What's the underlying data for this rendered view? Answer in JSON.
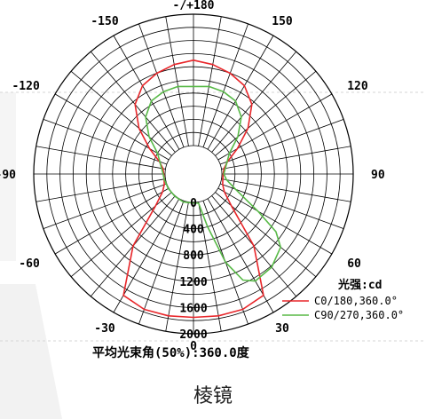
{
  "chart_data": {
    "type": "polar-line",
    "title": "",
    "unit_label": "光强:cd",
    "summary": "平均光束角(50%):360.0度",
    "radial_ticks": [
      "0",
      "400",
      "800",
      "1200",
      "1600",
      "2000"
    ],
    "radial_max": 2000,
    "angle_labels": [
      {
        "angle": 180,
        "text": "-/+180"
      },
      {
        "angle": -150,
        "text": "-150"
      },
      {
        "angle": 150,
        "text": "150"
      },
      {
        "angle": -120,
        "text": "-120"
      },
      {
        "angle": 120,
        "text": "120"
      },
      {
        "angle": -90,
        "text": "-90"
      },
      {
        "angle": 90,
        "text": "90"
      },
      {
        "angle": -60,
        "text": "-60"
      },
      {
        "angle": 60,
        "text": "60"
      },
      {
        "angle": -30,
        "text": "-30"
      },
      {
        "angle": 30,
        "text": "30"
      },
      {
        "angle": 0,
        "text": "0"
      }
    ],
    "series": [
      {
        "name": "C0/180,360.0°",
        "color": "#e8262a",
        "points": [
          [
            0,
            1750
          ],
          [
            10,
            1760
          ],
          [
            20,
            1760
          ],
          [
            30,
            1700
          ],
          [
            40,
            1000
          ],
          [
            50,
            320
          ],
          [
            60,
            110
          ],
          [
            70,
            40
          ],
          [
            80,
            20
          ],
          [
            90,
            20
          ],
          [
            100,
            40
          ],
          [
            110,
            120
          ],
          [
            120,
            340
          ],
          [
            130,
            650
          ],
          [
            140,
            950
          ],
          [
            150,
            1120
          ],
          [
            160,
            1200
          ],
          [
            170,
            1260
          ],
          [
            180,
            1300
          ],
          [
            190,
            1260
          ],
          [
            200,
            1200
          ],
          [
            210,
            1120
          ],
          [
            220,
            950
          ],
          [
            230,
            650
          ],
          [
            240,
            340
          ],
          [
            250,
            120
          ],
          [
            260,
            40
          ],
          [
            270,
            20
          ],
          [
            280,
            20
          ],
          [
            290,
            40
          ],
          [
            300,
            110
          ],
          [
            310,
            320
          ],
          [
            320,
            1000
          ],
          [
            330,
            1700
          ],
          [
            340,
            1760
          ],
          [
            350,
            1760
          ]
        ]
      },
      {
        "name": "C90/270,360.0°",
        "color": "#58b947",
        "points": [
          [
            0,
            10
          ],
          [
            10,
            20
          ],
          [
            15,
            400
          ],
          [
            20,
            1000
          ],
          [
            25,
            1350
          ],
          [
            30,
            1450
          ],
          [
            40,
            1420
          ],
          [
            50,
            1300
          ],
          [
            55,
            1100
          ],
          [
            60,
            700
          ],
          [
            70,
            250
          ],
          [
            80,
            80
          ],
          [
            90,
            30
          ],
          [
            100,
            60
          ],
          [
            120,
            200
          ],
          [
            130,
            450
          ],
          [
            140,
            700
          ],
          [
            150,
            850
          ],
          [
            160,
            900
          ],
          [
            170,
            920
          ],
          [
            180,
            900
          ],
          [
            190,
            920
          ],
          [
            200,
            900
          ],
          [
            210,
            850
          ],
          [
            220,
            700
          ],
          [
            230,
            450
          ],
          [
            240,
            200
          ],
          [
            260,
            60
          ],
          [
            270,
            30
          ],
          [
            280,
            20
          ],
          [
            300,
            10
          ],
          [
            320,
            10
          ],
          [
            340,
            20
          ],
          [
            350,
            10
          ]
        ]
      }
    ],
    "grid": true
  },
  "caption": "棱镜"
}
